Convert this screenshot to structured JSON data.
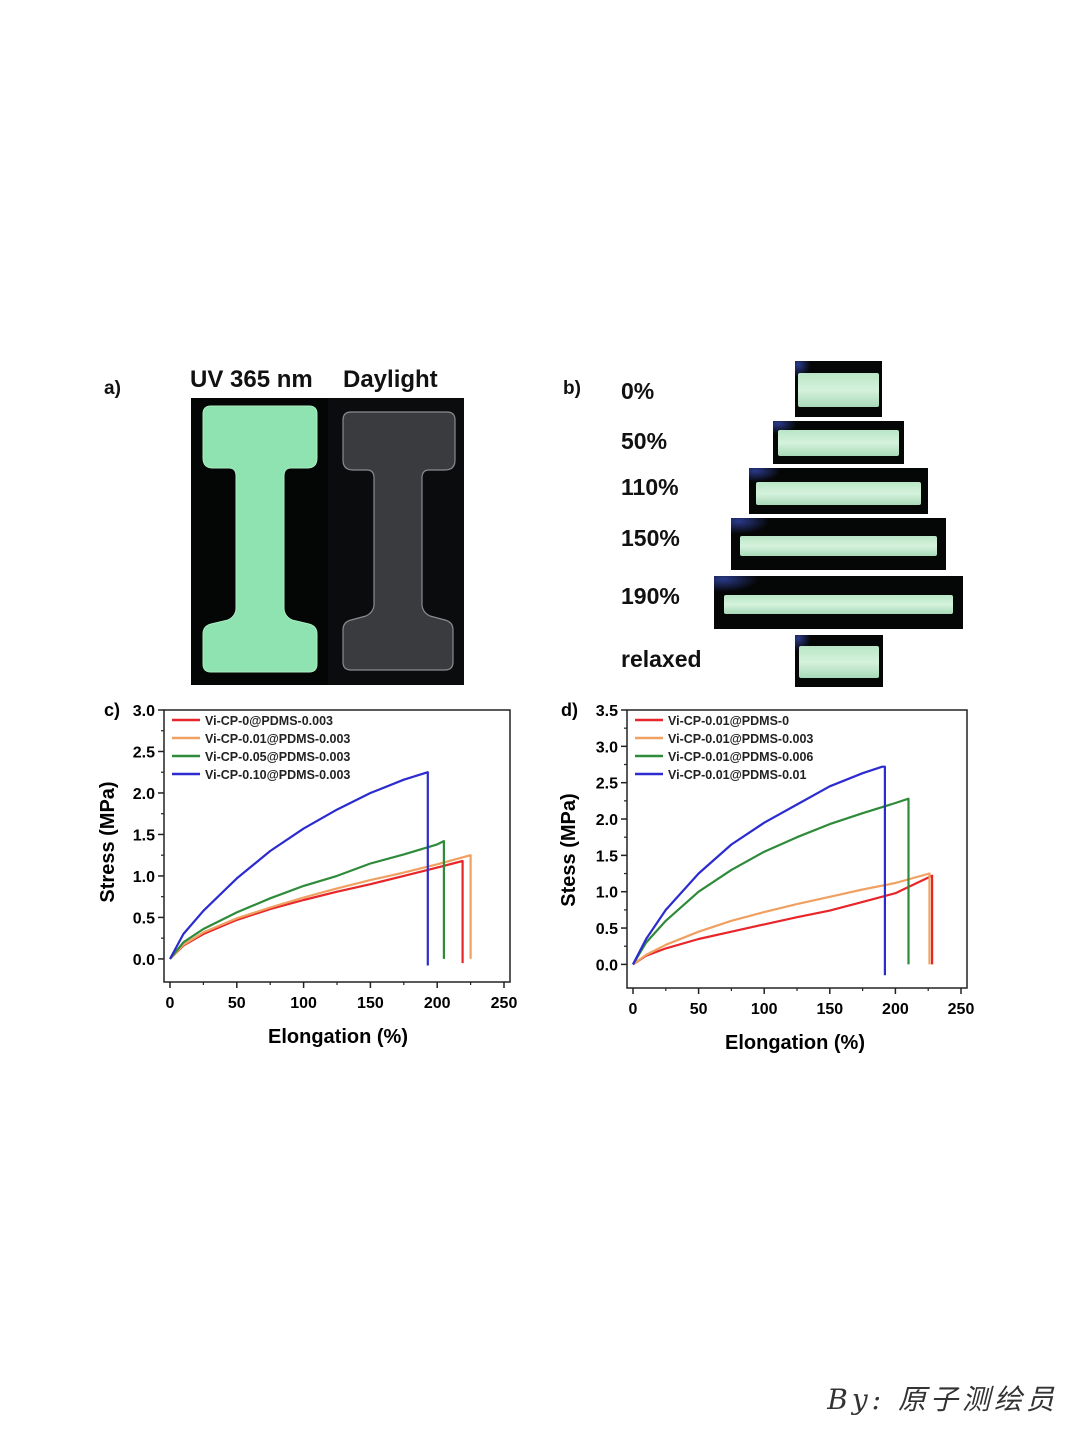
{
  "panel_a": {
    "label": "a)",
    "left_title": "UV 365 nm",
    "right_title": "Daylight",
    "colors": {
      "uv_specimen": "#8fe3b1",
      "daylight_specimen": "#3a3b3f",
      "background": "#070909"
    }
  },
  "panel_b": {
    "label": "b)",
    "strains": [
      {
        "label": "0%",
        "stretch": 0
      },
      {
        "label": "50%",
        "stretch": 50
      },
      {
        "label": "110%",
        "stretch": 110
      },
      {
        "label": "150%",
        "stretch": 150
      },
      {
        "label": "190%",
        "stretch": 190
      },
      {
        "label": "relaxed",
        "stretch": 0
      }
    ]
  },
  "chart_data": [
    {
      "type": "line",
      "panel_label": "c)",
      "xlabel": "Elongation (%)",
      "ylabel": "Stress (MPa)",
      "xlim": [
        0,
        250
      ],
      "ylim": [
        0,
        3.0
      ],
      "xticks": [
        "0",
        "50",
        "100",
        "150",
        "200",
        "250"
      ],
      "yticks": [
        "0.0",
        "0.5",
        "1.0",
        "1.5",
        "2.0",
        "2.5",
        "3.0"
      ],
      "legend_position": "top-left",
      "grid": false,
      "series": [
        {
          "name": "Vi-CP-0@PDMS-0.003",
          "color": "#e8262a",
          "x": [
            0,
            10,
            25,
            50,
            75,
            100,
            125,
            150,
            175,
            200,
            219,
            219
          ],
          "y": [
            0,
            0.16,
            0.3,
            0.47,
            0.6,
            0.71,
            0.81,
            0.9,
            1.0,
            1.1,
            1.18,
            -0.05
          ]
        },
        {
          "name": "Vi-CP-0.01@PDMS-0.003",
          "color": "#f0a060",
          "x": [
            0,
            10,
            25,
            50,
            75,
            100,
            125,
            150,
            175,
            200,
            225,
            225
          ],
          "y": [
            0,
            0.17,
            0.32,
            0.49,
            0.62,
            0.74,
            0.85,
            0.95,
            1.04,
            1.14,
            1.25,
            0
          ]
        },
        {
          "name": "Vi-CP-0.05@PDMS-0.003",
          "color": "#2e8b3a",
          "x": [
            0,
            10,
            25,
            50,
            75,
            100,
            125,
            150,
            175,
            200,
            205,
            205
          ],
          "y": [
            0,
            0.2,
            0.36,
            0.56,
            0.73,
            0.88,
            1.0,
            1.15,
            1.26,
            1.38,
            1.42,
            0
          ]
        },
        {
          "name": "Vi-CP-0.10@PDMS-0.003",
          "color": "#2b2bd0",
          "x": [
            0,
            10,
            25,
            50,
            75,
            100,
            125,
            150,
            175,
            193,
            193
          ],
          "y": [
            0,
            0.3,
            0.58,
            0.97,
            1.3,
            1.57,
            1.8,
            2.0,
            2.16,
            2.25,
            -0.08
          ]
        }
      ]
    },
    {
      "type": "line",
      "panel_label": "d)",
      "xlabel": "Elongation (%)",
      "ylabel": "Stess (MPa)",
      "xlim": [
        0,
        250
      ],
      "ylim": [
        0,
        3.5
      ],
      "xticks": [
        "0",
        "50",
        "100",
        "150",
        "200",
        "250"
      ],
      "yticks": [
        "0.0",
        "0.5",
        "1.0",
        "1.5",
        "2.0",
        "2.5",
        "3.0",
        "3.5"
      ],
      "legend_position": "top-left",
      "grid": false,
      "series": [
        {
          "name": "Vi-CP-0.01@PDMS-0",
          "color": "#e8262a",
          "x": [
            0,
            10,
            25,
            50,
            75,
            100,
            125,
            150,
            175,
            200,
            228,
            228
          ],
          "y": [
            0,
            0.12,
            0.22,
            0.35,
            0.45,
            0.55,
            0.65,
            0.74,
            0.86,
            0.98,
            1.22,
            0
          ]
        },
        {
          "name": "Vi-CP-0.01@PDMS-0.003",
          "color": "#f0a060",
          "x": [
            0,
            10,
            25,
            50,
            75,
            100,
            125,
            150,
            175,
            200,
            226,
            226
          ],
          "y": [
            0,
            0.13,
            0.27,
            0.45,
            0.6,
            0.72,
            0.83,
            0.93,
            1.03,
            1.12,
            1.25,
            0
          ]
        },
        {
          "name": "Vi-CP-0.01@PDMS-0.006",
          "color": "#2e8b3a",
          "x": [
            0,
            10,
            25,
            50,
            75,
            100,
            125,
            150,
            175,
            200,
            210,
            210
          ],
          "y": [
            0,
            0.3,
            0.6,
            1.0,
            1.3,
            1.55,
            1.75,
            1.93,
            2.08,
            2.22,
            2.28,
            0
          ]
        },
        {
          "name": "Vi-CP-0.01@PDMS-0.01",
          "color": "#2b2bd0",
          "x": [
            0,
            10,
            25,
            50,
            75,
            100,
            125,
            150,
            175,
            190,
            192,
            192
          ],
          "y": [
            0,
            0.35,
            0.75,
            1.25,
            1.65,
            1.95,
            2.2,
            2.45,
            2.63,
            2.72,
            2.72,
            -0.15
          ]
        }
      ]
    }
  ],
  "watermark": "By: 原子测绘员"
}
